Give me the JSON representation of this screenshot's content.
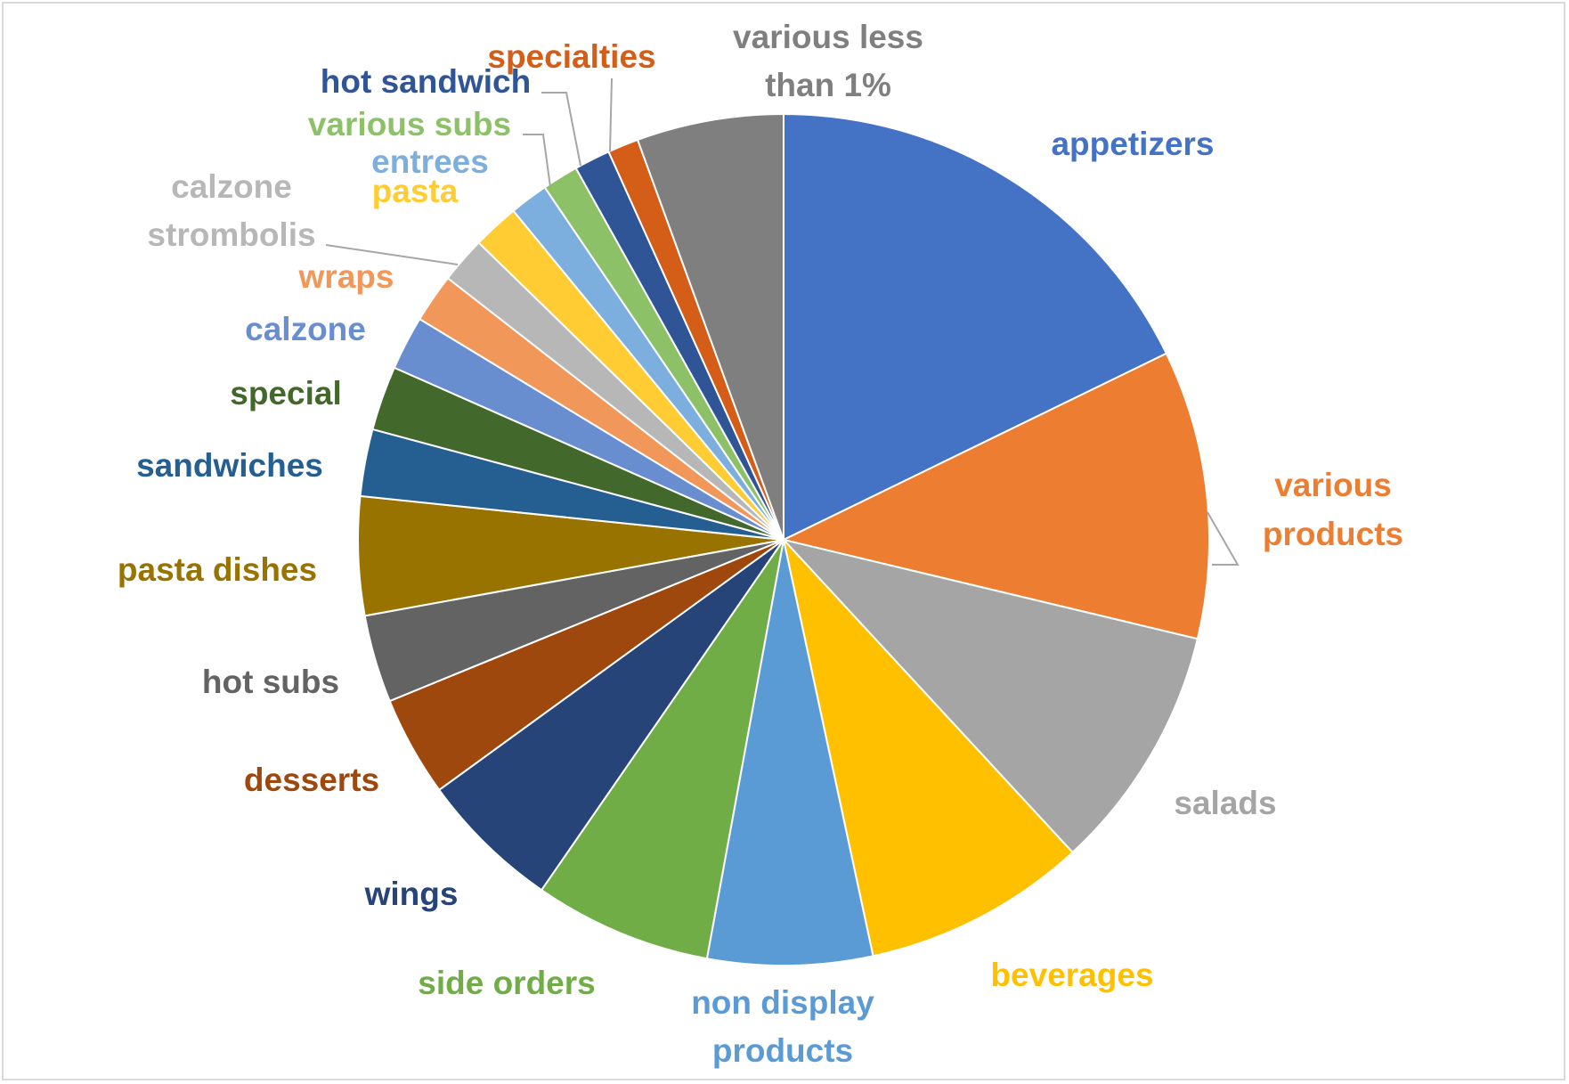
{
  "chart_data": {
    "type": "pie",
    "title": "",
    "slices": [
      {
        "label": "appetizers",
        "value": 18.2,
        "color": "#4472C4",
        "label_color": "#4472C4"
      },
      {
        "label": "various products",
        "value": 11.2,
        "color": "#ED7D31",
        "label_color": "#ED7D31"
      },
      {
        "label": "salads",
        "value": 9.6,
        "color": "#A5A5A5",
        "label_color": "#A5A5A5"
      },
      {
        "label": "beverages",
        "value": 8.7,
        "color": "#FFC000",
        "label_color": "#FFC000"
      },
      {
        "label": "non display products",
        "value": 6.4,
        "color": "#5B9BD5",
        "label_color": "#5B9BD5"
      },
      {
        "label": "side orders",
        "value": 6.9,
        "color": "#70AD47",
        "label_color": "#70AD47"
      },
      {
        "label": "wings",
        "value": 5.5,
        "color": "#264478",
        "label_color": "#264478"
      },
      {
        "label": "desserts",
        "value": 3.9,
        "color": "#9E480E",
        "label_color": "#9E480E"
      },
      {
        "label": "hot subs",
        "value": 3.4,
        "color": "#636363",
        "label_color": "#636363"
      },
      {
        "label": "pasta dishes",
        "value": 4.6,
        "color": "#997300",
        "label_color": "#997300"
      },
      {
        "label": "sandwiches",
        "value": 2.6,
        "color": "#255E91",
        "label_color": "#255E91"
      },
      {
        "label": "special",
        "value": 2.5,
        "color": "#43682B",
        "label_color": "#43682B"
      },
      {
        "label": "calzone",
        "value": 2.1,
        "color": "#698ED0",
        "label_color": "#698ED0"
      },
      {
        "label": "wraps",
        "value": 1.9,
        "color": "#F1975A",
        "label_color": "#F1975A"
      },
      {
        "label": "calzone strombolis",
        "value": 1.8,
        "color": "#B7B7B7",
        "label_color": "#B7B7B7"
      },
      {
        "label": "pasta",
        "value": 1.8,
        "color": "#FFCD33",
        "label_color": "#FFCD33"
      },
      {
        "label": "entrees",
        "value": 1.5,
        "color": "#7CAFDD",
        "label_color": "#7CAFDD"
      },
      {
        "label": "various subs",
        "value": 1.4,
        "color": "#8CC168",
        "label_color": "#8CC168"
      },
      {
        "label": "hot sandwich",
        "value": 1.4,
        "color": "#2F5597",
        "label_color": "#2F5597"
      },
      {
        "label": "specialties",
        "value": 1.2,
        "color": "#D45D17",
        "label_color": "#D45D17"
      },
      {
        "label": "various less than 1%",
        "value": 5.7,
        "color": "#7F7F7F",
        "label_color": "#7F7F7F"
      }
    ],
    "start_angle_deg": 0,
    "direction": "clockwise",
    "legend": "none",
    "data_labels": "category names outside"
  }
}
